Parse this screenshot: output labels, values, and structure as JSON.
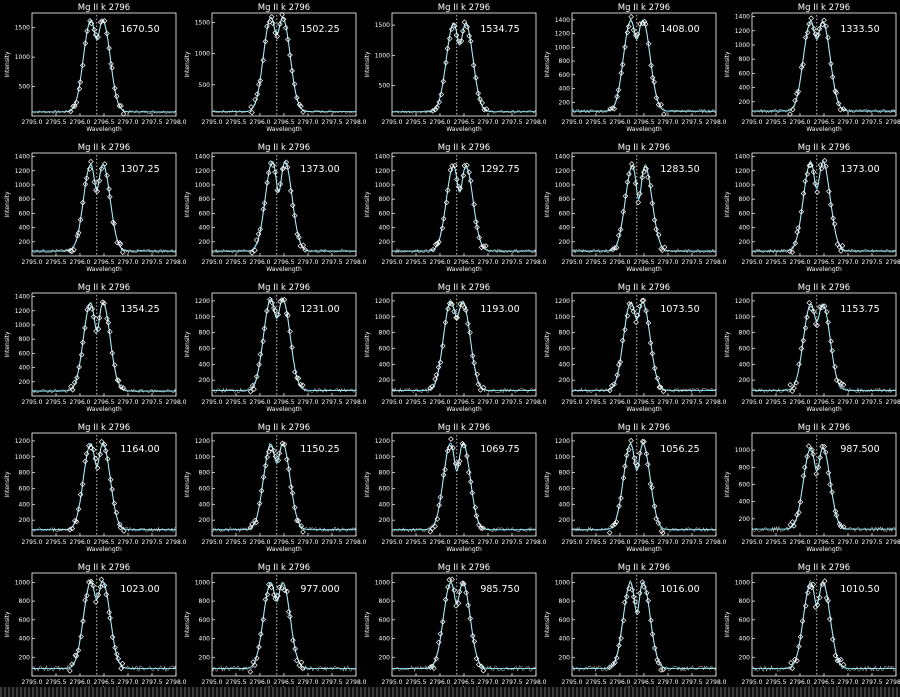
{
  "colors": {
    "background": "#000000",
    "axes": "#ffffff",
    "observed": "#ffffff",
    "fit": "#6fd6e6"
  },
  "chart_data": {
    "type": "line",
    "layout": "grid 5x5",
    "shared": {
      "title": "Mg II k 2796",
      "xlabel": "Wavelength",
      "ylabel": "Intensity",
      "xlim": [
        2795.0,
        2798.0
      ],
      "x_tick_labels": [
        "2795.0",
        "2795.5",
        "2796.0",
        "2796.5",
        "2797.0",
        "2797.5",
        "2798.0"
      ],
      "reference_line_x": 2796.35,
      "series": [
        {
          "name": "",
          "marker": "diamond",
          "color": "#ffffff"
        },
        {
          "name": "",
          "line": "solid",
          "color": "#6fd6e6"
        }
      ]
    },
    "panels": [
      {
        "annotation": "1670.50",
        "ylim": [
          0,
          1750
        ],
        "y_ticks": [
          500,
          1000,
          1500
        ],
        "peak": 1610,
        "dip": 1300,
        "shift": 0.0,
        "base": 70
      },
      {
        "annotation": "1502.25",
        "ylim": [
          0,
          1650
        ],
        "y_ticks": [
          500,
          1000,
          1500
        ],
        "peak": 1560,
        "dip": 1300,
        "shift": 0.0,
        "base": 70
      },
      {
        "annotation": "1534.75",
        "ylim": [
          0,
          1700
        ],
        "y_ticks": [
          500,
          1000,
          1500
        ],
        "peak": 1520,
        "dip": 1170,
        "shift": 0.06,
        "base": 70
      },
      {
        "annotation": "1408.00",
        "ylim": [
          0,
          1500
        ],
        "y_ticks": [
          200,
          400,
          600,
          800,
          1000,
          1200,
          1400
        ],
        "peak": 1380,
        "dip": 1120,
        "shift": 0.0,
        "base": 70
      },
      {
        "annotation": "1333.50",
        "ylim": [
          0,
          1450
        ],
        "y_ticks": [
          200,
          400,
          600,
          800,
          1000,
          1200,
          1400
        ],
        "peak": 1320,
        "dip": 1080,
        "shift": 0.0,
        "base": 70
      },
      {
        "annotation": "1307.25",
        "ylim": [
          0,
          1450
        ],
        "y_ticks": [
          200,
          400,
          600,
          800,
          1000,
          1200,
          1400
        ],
        "peak": 1280,
        "dip": 940,
        "shift": 0.0,
        "base": 70
      },
      {
        "annotation": "1373.00",
        "ylim": [
          0,
          1450
        ],
        "y_ticks": [
          200,
          400,
          600,
          800,
          1000,
          1200,
          1400
        ],
        "peak": 1330,
        "dip": 900,
        "shift": 0.04,
        "base": 70
      },
      {
        "annotation": "1292.75",
        "ylim": [
          0,
          1450
        ],
        "y_ticks": [
          200,
          400,
          600,
          800,
          1000,
          1200,
          1400
        ],
        "peak": 1260,
        "dip": 900,
        "shift": 0.06,
        "base": 70
      },
      {
        "annotation": "1283.50",
        "ylim": [
          0,
          1450
        ],
        "y_ticks": [
          200,
          400,
          600,
          800,
          1000,
          1200,
          1400
        ],
        "peak": 1270,
        "dip": 800,
        "shift": 0.04,
        "base": 70
      },
      {
        "annotation": "1373.00",
        "ylim": [
          0,
          1450
        ],
        "y_ticks": [
          200,
          400,
          600,
          800,
          1000,
          1200,
          1400
        ],
        "peak": 1320,
        "dip": 950,
        "shift": 0.0,
        "base": 70
      },
      {
        "annotation": "1354.25",
        "ylim": [
          0,
          1450
        ],
        "y_ticks": [
          200,
          400,
          600,
          800,
          1000,
          1200,
          1400
        ],
        "peak": 1310,
        "dip": 920,
        "shift": 0.0,
        "base": 70
      },
      {
        "annotation": "1231.00",
        "ylim": [
          0,
          1300
        ],
        "y_ticks": [
          200,
          400,
          600,
          800,
          1000,
          1200
        ],
        "peak": 1210,
        "dip": 980,
        "shift": 0.0,
        "base": 70
      },
      {
        "annotation": "1193.00",
        "ylim": [
          0,
          1300
        ],
        "y_ticks": [
          200,
          400,
          600,
          800,
          1000,
          1200
        ],
        "peak": 1180,
        "dip": 1000,
        "shift": 0.0,
        "base": 70
      },
      {
        "annotation": "1073.50",
        "ylim": [
          0,
          1300
        ],
        "y_ticks": [
          200,
          400,
          600,
          800,
          1000,
          1200
        ],
        "peak": 1170,
        "dip": 970,
        "shift": 0.0,
        "base": 70
      },
      {
        "annotation": "1153.75",
        "ylim": [
          0,
          1300
        ],
        "y_ticks": [
          200,
          400,
          600,
          800,
          1000,
          1200
        ],
        "peak": 1150,
        "dip": 940,
        "shift": 0.0,
        "base": 70
      },
      {
        "annotation": "1164.00",
        "ylim": [
          0,
          1300
        ],
        "y_ticks": [
          200,
          400,
          600,
          800,
          1000,
          1200
        ],
        "peak": 1160,
        "dip": 880,
        "shift": 0.0,
        "base": 80
      },
      {
        "annotation": "1150.25",
        "ylim": [
          0,
          1300
        ],
        "y_ticks": [
          200,
          400,
          600,
          800,
          1000,
          1200
        ],
        "peak": 1150,
        "dip": 920,
        "shift": 0.0,
        "base": 80
      },
      {
        "annotation": "1069.75",
        "ylim": [
          0,
          1300
        ],
        "y_ticks": [
          200,
          400,
          600,
          800,
          1000,
          1200
        ],
        "peak": 1170,
        "dip": 820,
        "shift": 0.0,
        "base": 80
      },
      {
        "annotation": "1056.25",
        "ylim": [
          0,
          1300
        ],
        "y_ticks": [
          200,
          400,
          600,
          800,
          1000,
          1200
        ],
        "peak": 1160,
        "dip": 830,
        "shift": 0.0,
        "base": 80
      },
      {
        "annotation": "987.500",
        "ylim": [
          0,
          1200
        ],
        "y_ticks": [
          200,
          400,
          600,
          800,
          1000
        ],
        "peak": 1020,
        "dip": 760,
        "shift": 0.0,
        "base": 80
      },
      {
        "annotation": "1023.00",
        "ylim": [
          0,
          1100
        ],
        "y_ticks": [
          200,
          400,
          600,
          800,
          1000
        ],
        "peak": 1000,
        "dip": 820,
        "shift": 0.0,
        "base": 80
      },
      {
        "annotation": "977.000",
        "ylim": [
          0,
          1100
        ],
        "y_ticks": [
          200,
          400,
          600,
          800,
          1000
        ],
        "peak": 990,
        "dip": 800,
        "shift": 0.0,
        "base": 80
      },
      {
        "annotation": "985.750",
        "ylim": [
          0,
          1100
        ],
        "y_ticks": [
          200,
          400,
          600,
          800,
          1000
        ],
        "peak": 990,
        "dip": 780,
        "shift": 0.0,
        "base": 80
      },
      {
        "annotation": "1016.00",
        "ylim": [
          0,
          1100
        ],
        "y_ticks": [
          200,
          400,
          600,
          800,
          1000
        ],
        "peak": 1000,
        "dip": 680,
        "shift": 0.0,
        "base": 80
      },
      {
        "annotation": "1010.50",
        "ylim": [
          0,
          1100
        ],
        "y_ticks": [
          200,
          400,
          600,
          800,
          1000
        ],
        "peak": 990,
        "dip": 760,
        "shift": 0.0,
        "base": 80
      }
    ]
  }
}
